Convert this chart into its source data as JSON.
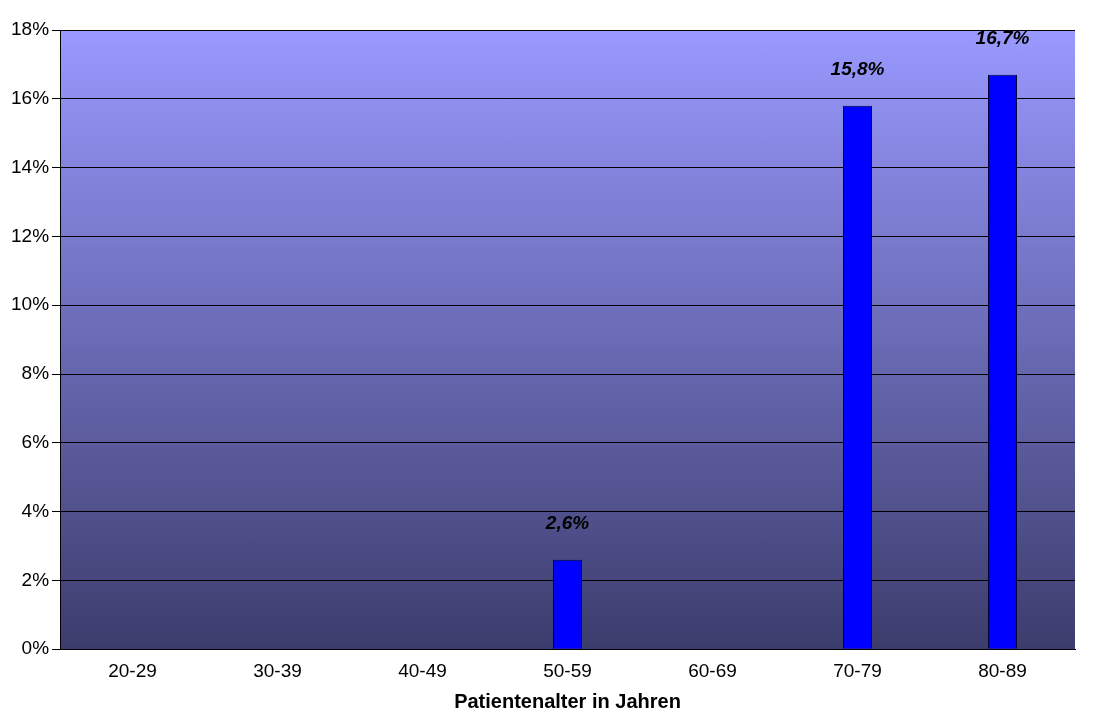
{
  "chart_data": {
    "type": "bar",
    "xlabel": "Patientenalter in Jahren",
    "categories": [
      "20-29",
      "30-39",
      "40-49",
      "50-59",
      "60-69",
      "70-79",
      "80-89"
    ],
    "values": [
      0,
      0,
      0,
      2.6,
      0,
      15.8,
      16.7
    ],
    "color": "#0000ff",
    "value_labels": [
      null,
      null,
      null,
      "2,6%",
      null,
      "15,8%",
      "16,7%"
    ],
    "ylim": [
      0,
      18
    ],
    "yticks": [
      {
        "value": 0,
        "label": "0%"
      },
      {
        "value": 2,
        "label": "2%"
      },
      {
        "value": 4,
        "label": "4%"
      },
      {
        "value": 6,
        "label": "6%"
      },
      {
        "value": 8,
        "label": "8%"
      },
      {
        "value": 10,
        "label": "10%"
      },
      {
        "value": 12,
        "label": "12%"
      },
      {
        "value": 14,
        "label": "14%"
      },
      {
        "value": 16,
        "label": "16%"
      },
      {
        "value": 18,
        "label": "18%"
      }
    ],
    "grid": "y",
    "legend": false
  }
}
